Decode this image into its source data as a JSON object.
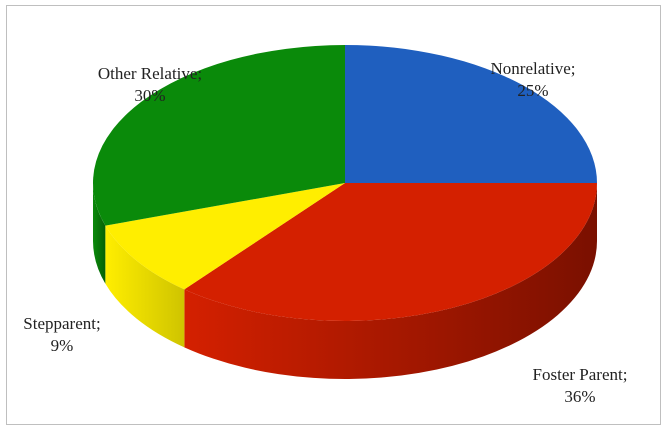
{
  "chart_data": {
    "type": "pie",
    "style": "3d",
    "title": "",
    "slices": [
      {
        "label": "Nonrelative",
        "value": 25,
        "display": "25%",
        "color": "#1f5fbf",
        "side_color": "#123a7a"
      },
      {
        "label": "Foster Parent",
        "value": 36,
        "display": "36%",
        "color": "#d42000",
        "side_color": "#7a1000"
      },
      {
        "label": "Stepparent",
        "value": 9,
        "display": "9%",
        "color": "#ffee00",
        "side_color": "#cfc400"
      },
      {
        "label": "Other Relative",
        "value": 30,
        "display": "30%",
        "color": "#0a8a0a",
        "side_color": "#066006"
      }
    ],
    "legend": "none"
  },
  "labels": {
    "nonrelative": {
      "name": "Nonrelative;",
      "pct": "25%"
    },
    "foster_parent": {
      "name": "Foster Parent;",
      "pct": "36%"
    },
    "stepparent": {
      "name": "Stepparent;",
      "pct": "9%"
    },
    "other_relative": {
      "name": "Other Relative;",
      "pct": "30%"
    }
  }
}
